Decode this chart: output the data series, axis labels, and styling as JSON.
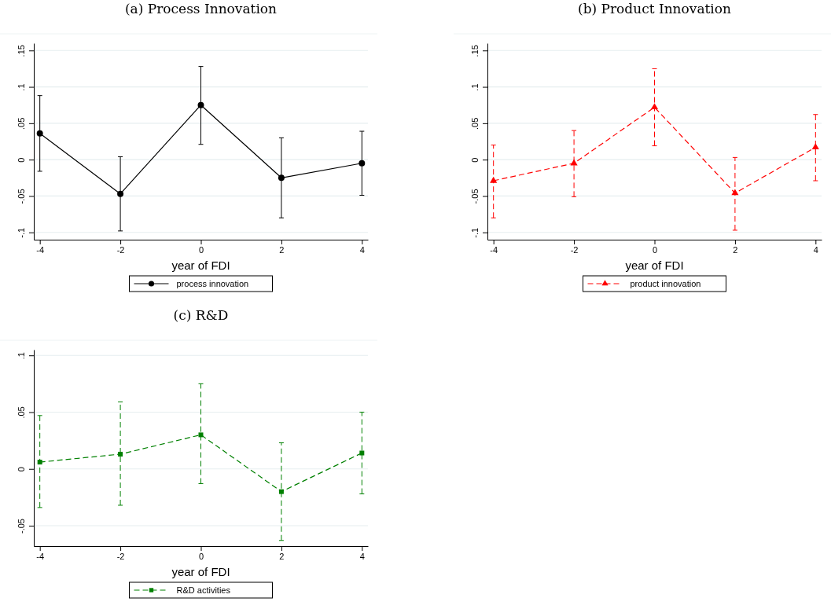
{
  "chart_data": [
    {
      "type": "line",
      "title": "(a) Process Innovation",
      "xlabel": "year of FDI",
      "x": [
        -4,
        -2,
        0,
        2,
        4
      ],
      "series": [
        {
          "name": "process innovation",
          "color": "#000000",
          "values": [
            0.036,
            -0.047,
            0.075,
            -0.025,
            -0.005
          ],
          "errors": [
            [
              -0.016,
              0.088
            ],
            [
              -0.098,
              0.004
            ],
            [
              0.021,
              0.128
            ],
            [
              -0.08,
              0.03
            ],
            [
              -0.049,
              0.039
            ]
          ]
        }
      ],
      "xlim": [
        -4.15,
        4.15
      ],
      "xticks": [
        -4,
        -2,
        0,
        2,
        4
      ],
      "ylim": [
        -0.11,
        0.16
      ],
      "yticks": [
        {
          "value": -0.1,
          "label": "-.1"
        },
        {
          "value": -0.05,
          "label": "-.05"
        },
        {
          "value": 0,
          "label": "0"
        },
        {
          "value": 0.05,
          "label": ".05"
        },
        {
          "value": 0.1,
          "label": ".1"
        },
        {
          "value": 0.15,
          "label": ".15"
        }
      ],
      "grid": "y",
      "legend": "bottom",
      "marker": "circle",
      "line_style": "solid"
    },
    {
      "type": "line",
      "title": "(b) Product Innovation",
      "xlabel": "year of FDI",
      "x": [
        -4,
        -2,
        0,
        2,
        4
      ],
      "series": [
        {
          "name": "product innovation",
          "color": "#ff0000",
          "values": [
            -0.029,
            -0.005,
            0.072,
            -0.046,
            0.017
          ],
          "errors": [
            [
              -0.08,
              0.02
            ],
            [
              -0.051,
              0.04
            ],
            [
              0.019,
              0.125
            ],
            [
              -0.097,
              0.003
            ],
            [
              -0.029,
              0.062
            ]
          ]
        }
      ],
      "xlim": [
        -4.15,
        4.15
      ],
      "xticks": [
        -4,
        -2,
        0,
        2,
        4
      ],
      "ylim": [
        -0.11,
        0.16
      ],
      "yticks": [
        {
          "value": -0.1,
          "label": "-.1"
        },
        {
          "value": -0.05,
          "label": "-.05"
        },
        {
          "value": 0,
          "label": "0"
        },
        {
          "value": 0.05,
          "label": ".05"
        },
        {
          "value": 0.1,
          "label": ".1"
        },
        {
          "value": 0.15,
          "label": ".15"
        }
      ],
      "grid": "y",
      "legend": "bottom",
      "marker": "triangle",
      "line_style": "dashed"
    },
    {
      "type": "line",
      "title": "(c) R&D",
      "xlabel": "year of FDI",
      "x": [
        -4,
        -2,
        0,
        2,
        4
      ],
      "series": [
        {
          "name": "R&D activities",
          "color": "#008000",
          "values": [
            0.006,
            0.013,
            0.03,
            -0.02,
            0.014
          ],
          "errors": [
            [
              -0.034,
              0.047
            ],
            [
              -0.032,
              0.059
            ],
            [
              -0.013,
              0.075
            ],
            [
              -0.063,
              0.023
            ],
            [
              -0.022,
              0.05
            ]
          ]
        }
      ],
      "xlim": [
        -4.15,
        4.15
      ],
      "xticks": [
        -4,
        -2,
        0,
        2,
        4
      ],
      "ylim": [
        -0.068,
        0.105
      ],
      "yticks": [
        {
          "value": -0.05,
          "label": "-.05"
        },
        {
          "value": 0,
          "label": "0"
        },
        {
          "value": 0.05,
          "label": ".05"
        },
        {
          "value": 0.1,
          "label": ".1"
        }
      ],
      "grid": "y",
      "legend": "bottom",
      "marker": "square",
      "line_style": "dashed"
    }
  ]
}
